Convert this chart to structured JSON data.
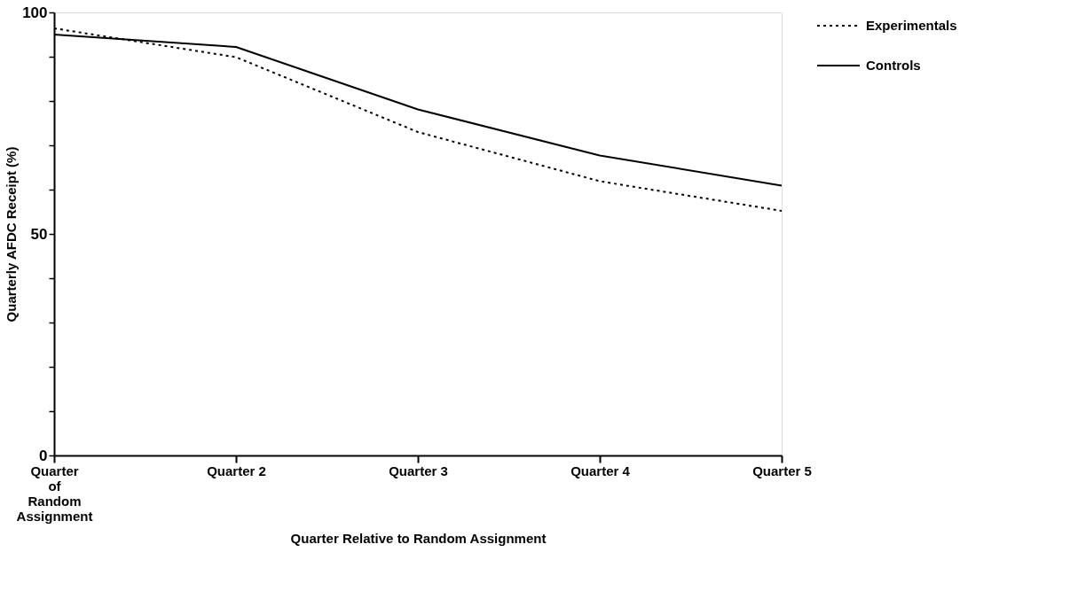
{
  "chart_data": {
    "type": "line",
    "xlabel": "Quarter Relative to Random Assignment",
    "ylabel": "Quarterly AFDC Receipt (%)",
    "categories": [
      "Quarter of Random Assignment",
      "Quarter 2",
      "Quarter 3",
      "Quarter 4",
      "Quarter 5"
    ],
    "series": [
      {
        "name": "Experimentals",
        "color": "#000000",
        "line_style": "dotted",
        "values": [
          96.4,
          89.9,
          73.0,
          61.9,
          55.2
        ]
      },
      {
        "name": "Controls",
        "color": "#000000",
        "line_style": "solid",
        "values": [
          95.0,
          92.2,
          78.1,
          67.7,
          60.9
        ]
      }
    ],
    "ylim": [
      0,
      100
    ],
    "yticks": [
      0,
      {
        "value": 10,
        "label": null
      },
      {
        "value": 20,
        "label": null
      },
      {
        "value": 30,
        "label": null
      },
      {
        "value": 40,
        "label": null
      },
      50,
      {
        "value": 60,
        "label": null
      },
      {
        "value": 70,
        "label": null
      },
      {
        "value": 80,
        "label": null
      },
      {
        "value": 90,
        "label": null
      },
      100
    ],
    "grid": false,
    "legend": "top right",
    "marker": "none"
  }
}
